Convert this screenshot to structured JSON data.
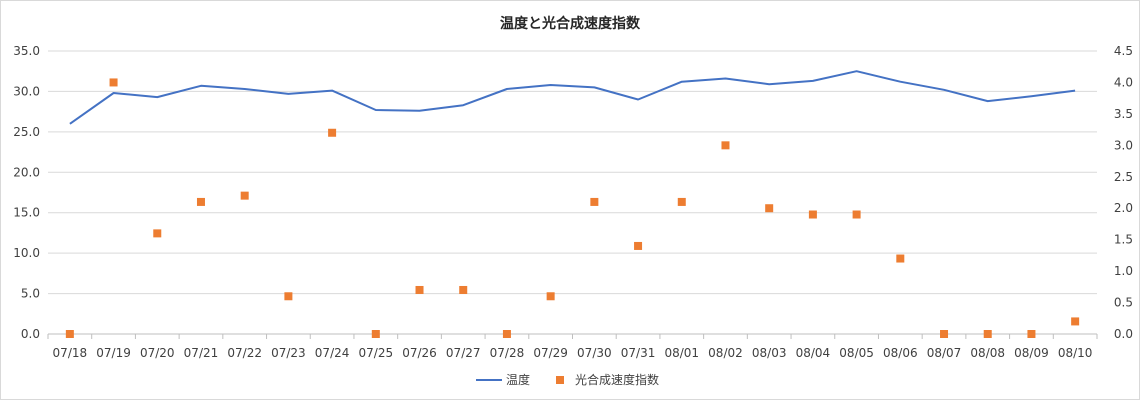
{
  "chart_data": {
    "type": "line",
    "title": "温度と光合成速度指数",
    "categories": [
      "07/18",
      "07/19",
      "07/20",
      "07/21",
      "07/22",
      "07/23",
      "07/24",
      "07/25",
      "07/26",
      "07/27",
      "07/28",
      "07/29",
      "07/30",
      "07/31",
      "08/01",
      "08/02",
      "08/03",
      "08/04",
      "08/05",
      "08/06",
      "08/07",
      "08/08",
      "08/09",
      "08/10"
    ],
    "series": [
      {
        "name": "温度",
        "kind": "line",
        "axis": "left",
        "color": "#4472c4",
        "values": [
          26.0,
          29.8,
          29.3,
          30.7,
          30.3,
          29.7,
          30.1,
          27.7,
          27.6,
          28.3,
          30.3,
          30.8,
          30.5,
          29.0,
          31.2,
          31.6,
          30.9,
          31.3,
          32.5,
          31.2,
          30.2,
          28.8,
          29.4,
          30.1
        ]
      },
      {
        "name": "光合成速度指数",
        "kind": "scatter",
        "axis": "right",
        "color": "#ed7d31",
        "values": [
          0.0,
          4.0,
          1.6,
          2.1,
          2.2,
          0.6,
          3.2,
          0.0,
          0.7,
          0.7,
          0.0,
          0.6,
          2.1,
          1.4,
          2.1,
          3.0,
          2.0,
          1.9,
          1.9,
          1.2,
          0.0,
          0.0,
          0.0,
          0.2
        ]
      }
    ],
    "y_left": {
      "ylim": [
        0,
        35
      ],
      "ticks": [
        "0.0",
        "5.0",
        "10.0",
        "15.0",
        "20.0",
        "25.0",
        "30.0",
        "35.0"
      ]
    },
    "y_right": {
      "ylim": [
        0,
        4.5
      ],
      "ticks": [
        "0.0",
        "0.5",
        "1.0",
        "1.5",
        "2.0",
        "2.5",
        "3.0",
        "3.5",
        "4.0",
        "4.5"
      ]
    },
    "grid": true,
    "legend": "bottom"
  }
}
